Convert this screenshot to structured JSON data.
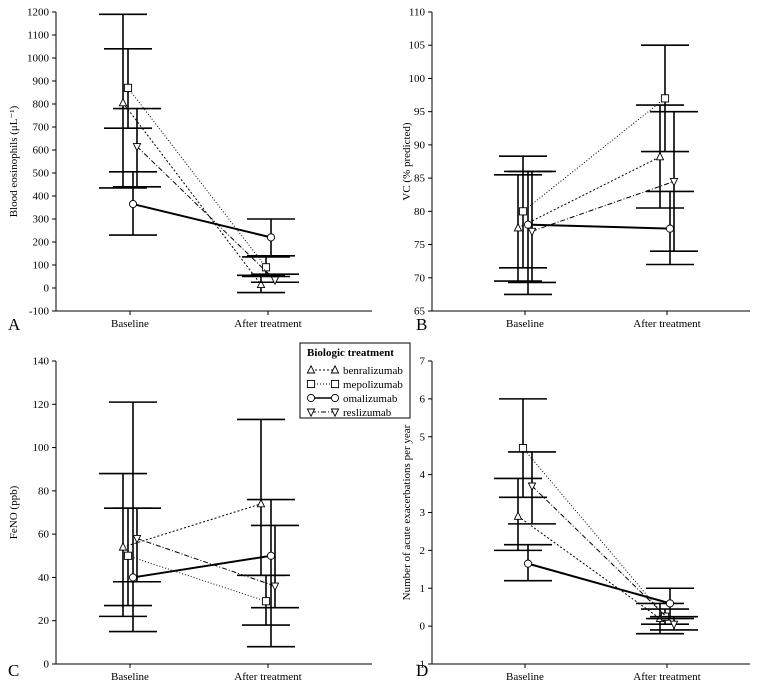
{
  "legend": {
    "title": "Biologic treatment",
    "entries": [
      {
        "name": "benralizumab",
        "marker": "triangle-up",
        "dash": "2,2"
      },
      {
        "name": "mepolizumab",
        "marker": "square",
        "dash": "1,2"
      },
      {
        "name": "omalizumab",
        "marker": "circle",
        "dash": ""
      },
      {
        "name": "reslizumab",
        "marker": "triangle-down",
        "dash": "5,2,1,2"
      }
    ]
  },
  "chart_data": [
    {
      "panel": "A",
      "type": "line",
      "categories": [
        "Baseline",
        "After treatment"
      ],
      "ylabel": "Blood eosinophils (μL⁻¹)",
      "ylim": [
        -100,
        1200
      ],
      "yticks": [
        -100,
        0,
        100,
        200,
        300,
        400,
        500,
        600,
        700,
        800,
        900,
        1000,
        1100,
        1200
      ],
      "series": [
        {
          "name": "benralizumab",
          "values": [
            805,
            15
          ],
          "lower": [
            435,
            -20
          ],
          "upper": [
            1190,
            55
          ]
        },
        {
          "name": "mepolizumab",
          "values": [
            870,
            90
          ],
          "lower": [
            695,
            50
          ],
          "upper": [
            1040,
            135
          ]
        },
        {
          "name": "omalizumab",
          "values": [
            365,
            220
          ],
          "lower": [
            230,
            140
          ],
          "upper": [
            505,
            300
          ]
        },
        {
          "name": "reslizumab",
          "values": [
            615,
            35
          ],
          "lower": [
            440,
            25
          ],
          "upper": [
            780,
            60
          ]
        }
      ]
    },
    {
      "panel": "B",
      "type": "line",
      "categories": [
        "Baseline",
        "After treatment"
      ],
      "ylabel": "VC (% predicted)",
      "ylim": [
        65,
        110
      ],
      "yticks": [
        65,
        70,
        75,
        80,
        85,
        90,
        95,
        100,
        105,
        110
      ],
      "series": [
        {
          "name": "benralizumab",
          "values": [
            77.5,
            88.2
          ],
          "lower": [
            69.5,
            80.5
          ],
          "upper": [
            85.5,
            96.0
          ]
        },
        {
          "name": "mepolizumab",
          "values": [
            80.0,
            97.0
          ],
          "lower": [
            71.5,
            89.0
          ],
          "upper": [
            88.3,
            105.0
          ]
        },
        {
          "name": "omalizumab",
          "values": [
            78.0,
            77.4
          ],
          "lower": [
            67.5,
            72.0
          ],
          "upper": [
            86.0,
            83.0
          ]
        },
        {
          "name": "reslizumab",
          "values": [
            77.0,
            84.5
          ],
          "lower": [
            69.3,
            74.0
          ],
          "upper": [
            86.0,
            95.0
          ]
        }
      ]
    },
    {
      "panel": "C",
      "type": "line",
      "categories": [
        "Baseline",
        "After treatment"
      ],
      "ylabel": "FeNO (ppb)",
      "ylim": [
        0,
        140
      ],
      "yticks": [
        0,
        20,
        40,
        60,
        80,
        100,
        120,
        140
      ],
      "series": [
        {
          "name": "benralizumab",
          "values": [
            54,
            74
          ],
          "lower": [
            22,
            41
          ],
          "upper": [
            88,
            113
          ]
        },
        {
          "name": "mepolizumab",
          "values": [
            50,
            29
          ],
          "lower": [
            27,
            18
          ],
          "upper": [
            72,
            41
          ]
        },
        {
          "name": "omalizumab",
          "values": [
            40,
            50
          ],
          "lower": [
            15,
            8
          ],
          "upper": [
            121,
            76
          ]
        },
        {
          "name": "reslizumab",
          "values": [
            58,
            36
          ],
          "lower": [
            38,
            26
          ],
          "upper": [
            72,
            64
          ]
        }
      ]
    },
    {
      "panel": "D",
      "type": "line",
      "categories": [
        "Baseline",
        "After treatment"
      ],
      "ylabel": "Number of acute exacerbations per year",
      "ylim": [
        -1,
        7
      ],
      "yticks": [
        -1,
        0,
        1,
        2,
        3,
        4,
        5,
        6,
        7
      ],
      "series": [
        {
          "name": "benralizumab",
          "values": [
            2.9,
            0.2
          ],
          "lower": [
            2.0,
            -0.2
          ],
          "upper": [
            3.9,
            0.6
          ]
        },
        {
          "name": "mepolizumab",
          "values": [
            4.7,
            0.25
          ],
          "lower": [
            3.4,
            0.05
          ],
          "upper": [
            6.0,
            0.45
          ]
        },
        {
          "name": "omalizumab",
          "values": [
            1.65,
            0.6
          ],
          "lower": [
            1.2,
            0.2
          ],
          "upper": [
            2.15,
            1.0
          ]
        },
        {
          "name": "reslizumab",
          "values": [
            3.7,
            0.05
          ],
          "lower": [
            2.7,
            -0.1
          ],
          "upper": [
            4.6,
            0.25
          ]
        }
      ]
    }
  ]
}
